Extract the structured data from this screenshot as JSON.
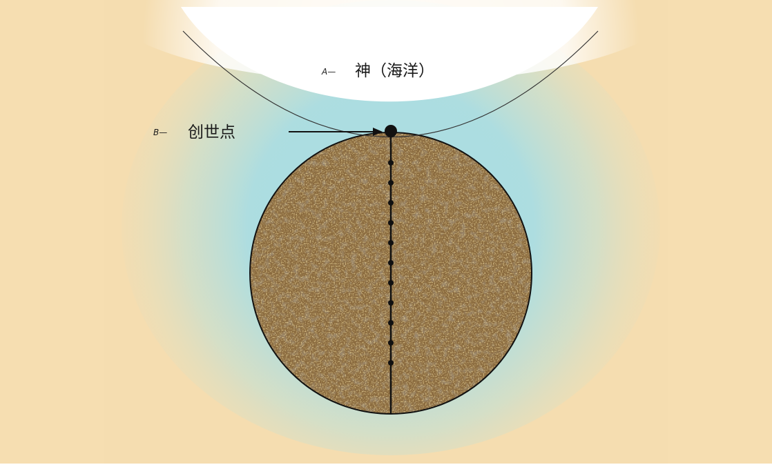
{
  "diagram": {
    "labels": {
      "a_letter": "A—",
      "a_text": "神（海洋）",
      "b_letter": "B—",
      "b_text": "创世点"
    },
    "axis_dot_count": 11
  },
  "colors": {
    "background": "#f5ddb0",
    "glow": "#a9dde3",
    "ocean": "#ffffff",
    "sphere_base": "#8a6a3e",
    "sphere_dark": "#5e4a33",
    "sphere_speckle": "#c9a24e",
    "line": "#111111"
  }
}
